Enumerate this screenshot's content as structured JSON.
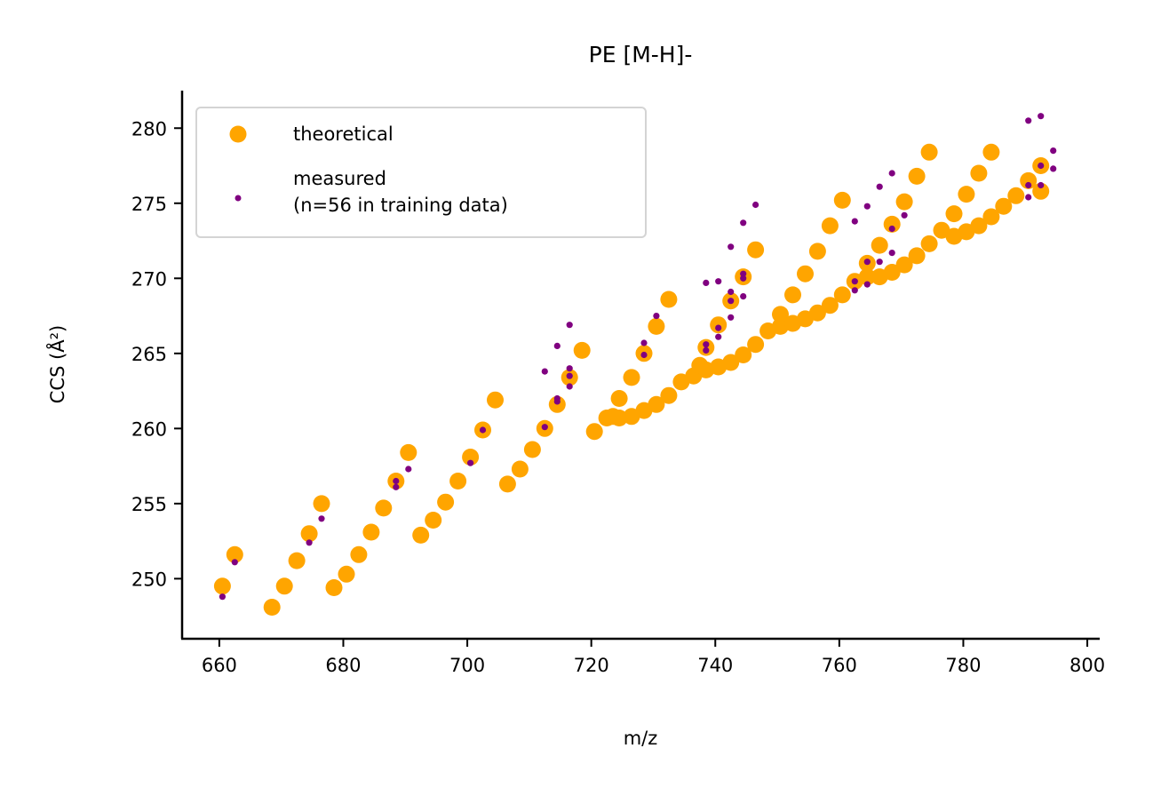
{
  "chart_data": {
    "type": "scatter",
    "title": "PE [M-H]-",
    "xlabel": "m/z",
    "ylabel": "CCS (Å²)",
    "xlim": [
      654,
      802
    ],
    "ylim": [
      246,
      282.5
    ],
    "xticks": [
      660,
      680,
      700,
      720,
      740,
      760,
      780,
      800
    ],
    "yticks": [
      250,
      255,
      260,
      265,
      270,
      275,
      280
    ],
    "grid": false,
    "legend_position": "top-left",
    "series": [
      {
        "name": "theoretical",
        "color": "#FFA500",
        "marker": "large-circle",
        "points": [
          [
            660.5,
            249.5
          ],
          [
            662.5,
            251.6
          ],
          [
            668.5,
            248.1
          ],
          [
            670.5,
            249.5
          ],
          [
            672.5,
            251.2
          ],
          [
            674.5,
            253.0
          ],
          [
            676.5,
            255.0
          ],
          [
            678.5,
            249.4
          ],
          [
            680.5,
            250.3
          ],
          [
            682.5,
            251.6
          ],
          [
            684.5,
            253.1
          ],
          [
            686.5,
            254.7
          ],
          [
            688.5,
            256.5
          ],
          [
            690.5,
            258.4
          ],
          [
            692.5,
            252.9
          ],
          [
            694.5,
            253.9
          ],
          [
            696.5,
            255.1
          ],
          [
            698.5,
            256.5
          ],
          [
            700.5,
            258.1
          ],
          [
            702.5,
            259.9
          ],
          [
            704.5,
            261.9
          ],
          [
            706.5,
            256.3
          ],
          [
            708.5,
            257.3
          ],
          [
            710.5,
            258.6
          ],
          [
            712.5,
            260.0
          ],
          [
            714.5,
            261.6
          ],
          [
            716.5,
            263.4
          ],
          [
            718.5,
            265.2
          ],
          [
            720.5,
            259.8
          ],
          [
            722.5,
            260.7
          ],
          [
            723.5,
            260.8
          ],
          [
            724.5,
            260.7
          ],
          [
            724.5,
            262.0
          ],
          [
            726.5,
            260.8
          ],
          [
            726.5,
            263.4
          ],
          [
            728.5,
            261.2
          ],
          [
            728.5,
            265.0
          ],
          [
            730.5,
            261.6
          ],
          [
            730.5,
            266.8
          ],
          [
            732.5,
            262.2
          ],
          [
            732.5,
            268.6
          ],
          [
            734.5,
            263.1
          ],
          [
            736.5,
            263.5
          ],
          [
            737.5,
            264.2
          ],
          [
            738.5,
            263.9
          ],
          [
            738.5,
            265.4
          ],
          [
            740.5,
            264.1
          ],
          [
            740.5,
            266.9
          ],
          [
            742.5,
            264.4
          ],
          [
            742.5,
            268.5
          ],
          [
            744.5,
            264.9
          ],
          [
            744.5,
            270.1
          ],
          [
            746.5,
            265.6
          ],
          [
            746.5,
            271.9
          ],
          [
            748.5,
            266.5
          ],
          [
            750.5,
            266.8
          ],
          [
            750.5,
            267.6
          ],
          [
            752.5,
            267.0
          ],
          [
            752.5,
            268.9
          ],
          [
            754.5,
            267.3
          ],
          [
            754.5,
            270.3
          ],
          [
            756.5,
            267.7
          ],
          [
            756.5,
            271.8
          ],
          [
            758.5,
            268.2
          ],
          [
            758.5,
            273.5
          ],
          [
            760.5,
            268.9
          ],
          [
            760.5,
            275.2
          ],
          [
            762.5,
            269.8
          ],
          [
            764.5,
            270.1
          ],
          [
            764.5,
            271.0
          ],
          [
            766.5,
            270.1
          ],
          [
            766.5,
            272.2
          ],
          [
            768.5,
            270.4
          ],
          [
            768.5,
            273.6
          ],
          [
            770.5,
            270.9
          ],
          [
            770.5,
            275.1
          ],
          [
            772.5,
            271.5
          ],
          [
            772.5,
            276.8
          ],
          [
            774.5,
            272.3
          ],
          [
            774.5,
            278.4
          ],
          [
            776.5,
            273.2
          ],
          [
            778.5,
            272.8
          ],
          [
            778.5,
            274.3
          ],
          [
            780.5,
            273.1
          ],
          [
            780.5,
            275.6
          ],
          [
            782.5,
            273.5
          ],
          [
            782.5,
            277.0
          ],
          [
            784.5,
            274.1
          ],
          [
            784.5,
            278.4
          ],
          [
            786.5,
            274.8
          ],
          [
            788.5,
            275.5
          ],
          [
            790.5,
            276.5
          ],
          [
            792.5,
            277.5
          ],
          [
            792.5,
            275.8
          ]
        ]
      },
      {
        "name": "measured\n(n=56 in training data)",
        "color": "#800080",
        "marker": "small-dot",
        "points": [
          [
            660.5,
            248.8
          ],
          [
            662.5,
            251.1
          ],
          [
            674.5,
            252.4
          ],
          [
            676.5,
            254.0
          ],
          [
            688.5,
            256.1
          ],
          [
            688.5,
            256.5
          ],
          [
            690.5,
            257.3
          ],
          [
            700.5,
            257.7
          ],
          [
            702.5,
            259.9
          ],
          [
            712.5,
            260.1
          ],
          [
            712.5,
            263.8
          ],
          [
            714.5,
            261.8
          ],
          [
            714.5,
            262.0
          ],
          [
            714.5,
            265.5
          ],
          [
            716.5,
            262.8
          ],
          [
            716.5,
            263.5
          ],
          [
            716.5,
            264.0
          ],
          [
            716.5,
            266.9
          ],
          [
            728.5,
            264.9
          ],
          [
            728.5,
            265.7
          ],
          [
            730.5,
            267.5
          ],
          [
            738.5,
            265.2
          ],
          [
            738.5,
            265.6
          ],
          [
            738.5,
            269.7
          ],
          [
            740.5,
            266.1
          ],
          [
            740.5,
            266.7
          ],
          [
            740.5,
            269.8
          ],
          [
            742.5,
            267.4
          ],
          [
            742.5,
            268.5
          ],
          [
            742.5,
            269.1
          ],
          [
            742.5,
            272.1
          ],
          [
            744.5,
            268.8
          ],
          [
            744.5,
            270.0
          ],
          [
            744.5,
            270.3
          ],
          [
            744.5,
            273.7
          ],
          [
            746.5,
            274.9
          ],
          [
            762.5,
            269.2
          ],
          [
            762.5,
            269.8
          ],
          [
            762.5,
            273.8
          ],
          [
            764.5,
            269.6
          ],
          [
            764.5,
            271.1
          ],
          [
            764.5,
            274.8
          ],
          [
            766.5,
            271.1
          ],
          [
            766.5,
            276.1
          ],
          [
            768.5,
            271.7
          ],
          [
            768.5,
            273.3
          ],
          [
            768.5,
            277.0
          ],
          [
            770.5,
            274.2
          ],
          [
            790.5,
            275.4
          ],
          [
            790.5,
            276.2
          ],
          [
            790.5,
            280.5
          ],
          [
            792.5,
            276.2
          ],
          [
            792.5,
            277.5
          ],
          [
            792.5,
            280.8
          ],
          [
            794.5,
            277.3
          ],
          [
            794.5,
            278.5
          ]
        ]
      }
    ]
  }
}
